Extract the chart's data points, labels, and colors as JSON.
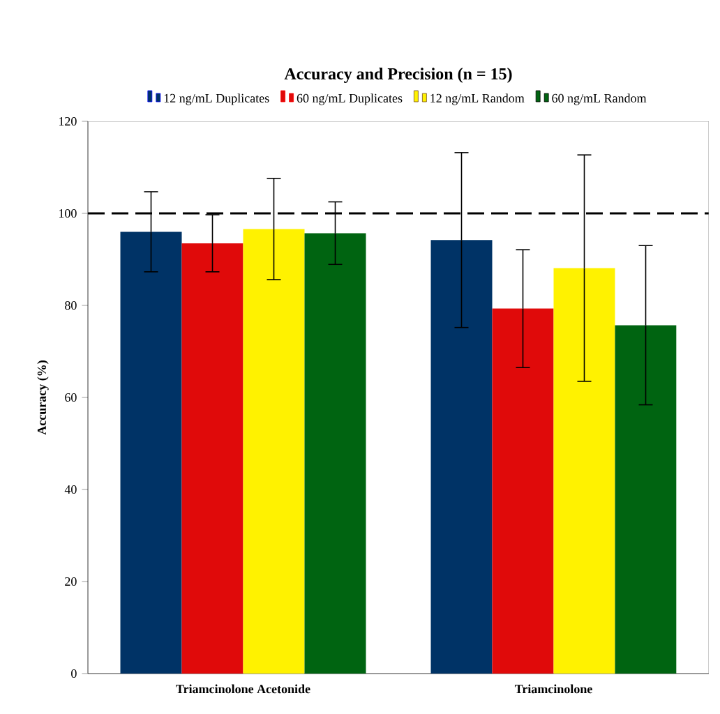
{
  "chart_data": {
    "type": "bar",
    "title": "Accuracy and Precision (n = 15)",
    "ylabel": "Accuracy (%)",
    "categories": [
      "Triamcinolone Acetonide",
      "Triamcinolone"
    ],
    "series": [
      {
        "name": "12 ng/mL Duplicates",
        "color": "#003366",
        "values": [
          96.0,
          94.2
        ],
        "errors": [
          8.7,
          19
        ]
      },
      {
        "name": "60 ng/mL Duplicates",
        "color": "#e00a0a",
        "values": [
          93.5,
          79.3
        ],
        "errors": [
          6.2,
          12.8
        ]
      },
      {
        "name": "12 ng/mL Random",
        "color": "#fff200",
        "values": [
          96.6,
          88.1
        ],
        "errors": [
          11,
          24.6
        ]
      },
      {
        "name": "60 ng/mL Random",
        "color": "#006411",
        "values": [
          95.7,
          75.7
        ],
        "errors": [
          6.8,
          17.3
        ]
      }
    ],
    "ylim": [
      0,
      120
    ],
    "yticks": [
      0,
      20,
      40,
      60,
      80,
      100,
      120
    ],
    "ref_lines": [
      {
        "axis": "y",
        "value": 100,
        "color": "#000000",
        "line_style": "dashed"
      }
    ],
    "legend": "top",
    "grid": false
  }
}
